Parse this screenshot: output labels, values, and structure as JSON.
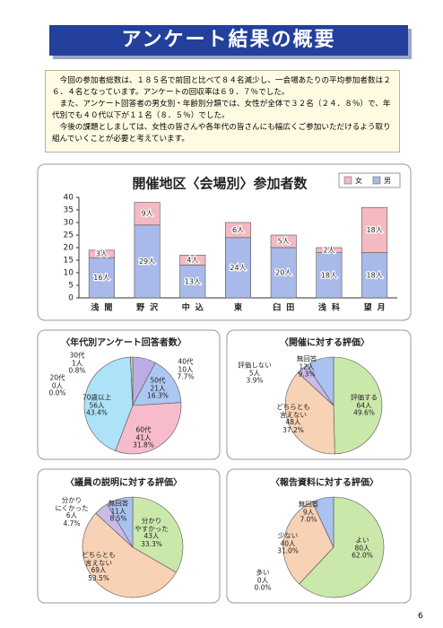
{
  "header": {
    "title": "アンケート結果の概要"
  },
  "summary": {
    "paragraphs": [
      "今回の参加者総数は、１８５名で前回と比べて８４名減少し、一会場あたりの平均参加者数は２６．４名となっています。アンケートの回収率は６９．７％でした。",
      "また、アンケート回答者の男女別・年齢別分類では、女性が全体で３２名（２４．８％）で、年代別でも４０代以下が１１名（８．５％）でした。",
      "今後の課題としましては、女性の皆さんや各年代の皆さんにも幅広くご参加いただけるよう取り組んでいくことが必要と考えています。"
    ]
  },
  "chart_data": [
    {
      "type": "bar",
      "stacked": true,
      "title": "開催地区〈会場別〉参加者数",
      "categories": [
        "浅間",
        "野沢",
        "中込",
        "東",
        "臼田",
        "浅科",
        "望月"
      ],
      "series": [
        {
          "name": "男",
          "color": "#a9b9ea",
          "values": [
            16,
            29,
            13,
            24,
            20,
            18,
            18
          ],
          "value_labels": [
            "16人",
            "29人",
            "13人",
            "24人",
            "20人",
            "18人",
            "18人"
          ]
        },
        {
          "name": "女",
          "color": "#f5b9c2",
          "values": [
            3,
            9,
            4,
            6,
            5,
            2,
            18
          ],
          "value_labels": [
            "3人",
            "9人",
            "4人",
            "6人",
            "5人",
            "2人",
            "18人"
          ]
        }
      ],
      "ylim": [
        0,
        40
      ],
      "yticks": [
        0,
        5,
        10,
        15,
        20,
        25,
        30,
        35,
        40
      ],
      "legend": "top-right"
    },
    {
      "type": "pie",
      "title": "〈年代別アンケート回答者数〉",
      "categories": [
        "40代",
        "50代",
        "60代",
        "70歳以上",
        "20代",
        "30代"
      ],
      "values": [
        10,
        21,
        41,
        56,
        0,
        1
      ],
      "value_labels": [
        "10人",
        "21人",
        "41人",
        "56人",
        "0人",
        "1人"
      ],
      "percents": [
        7.7,
        16.3,
        31.8,
        43.4,
        0.0,
        0.8
      ],
      "percent_labels": [
        "7.7%",
        "16.3%",
        "31.8%",
        "43.4%",
        "0.0%",
        "0.8%"
      ],
      "colors": [
        "#bcaee4",
        "#acc8f2",
        "#f7bccb",
        "#ade2f8",
        "#e0e0e0",
        "#bde3a5"
      ]
    },
    {
      "type": "pie",
      "title": "〈開催に対する評価〉",
      "categories": [
        "評価する",
        "どちらとも\n言えない",
        "評価しない",
        "無回答"
      ],
      "values": [
        64,
        48,
        5,
        12
      ],
      "value_labels": [
        "64人",
        "48人",
        "5人",
        "12人"
      ],
      "percents": [
        49.6,
        37.2,
        3.9,
        9.3
      ],
      "percent_labels": [
        "49.6%",
        "37.2%",
        "3.9%",
        "9.3%"
      ],
      "colors": [
        "#cbe8ab",
        "#f8d2b4",
        "#c9bae8",
        "#aac2f0"
      ]
    },
    {
      "type": "pie",
      "title": "〈議員の説明に対する評価〉",
      "categories": [
        "分かり\nやすかった",
        "どちらとも\n言えない",
        "分かり\nにくかった",
        "無回答"
      ],
      "values": [
        43,
        69,
        6,
        11
      ],
      "value_labels": [
        "43人",
        "69人",
        "6人",
        "11人"
      ],
      "percents": [
        33.3,
        53.5,
        4.7,
        8.5
      ],
      "percent_labels": [
        "33.3%",
        "53.5%",
        "4.7%",
        "8.5%"
      ],
      "colors": [
        "#cbe8ab",
        "#f8d2b4",
        "#c9bae8",
        "#aac2f0"
      ]
    },
    {
      "type": "pie",
      "title": "〈報告資料に対する評価〉",
      "categories": [
        "よい",
        "多い",
        "少ない",
        "無回答"
      ],
      "values": [
        80,
        0,
        40,
        9
      ],
      "value_labels": [
        "80人",
        "0人",
        "40人",
        "9人"
      ],
      "percents": [
        62.0,
        0.0,
        31.0,
        7.0
      ],
      "percent_labels": [
        "62.0%",
        "0.0%",
        "31.0%",
        "7.0%"
      ],
      "colors": [
        "#cbe8ab",
        "#c9bae8",
        "#f8d2b4",
        "#aac2f0"
      ]
    }
  ],
  "page_number": "6"
}
